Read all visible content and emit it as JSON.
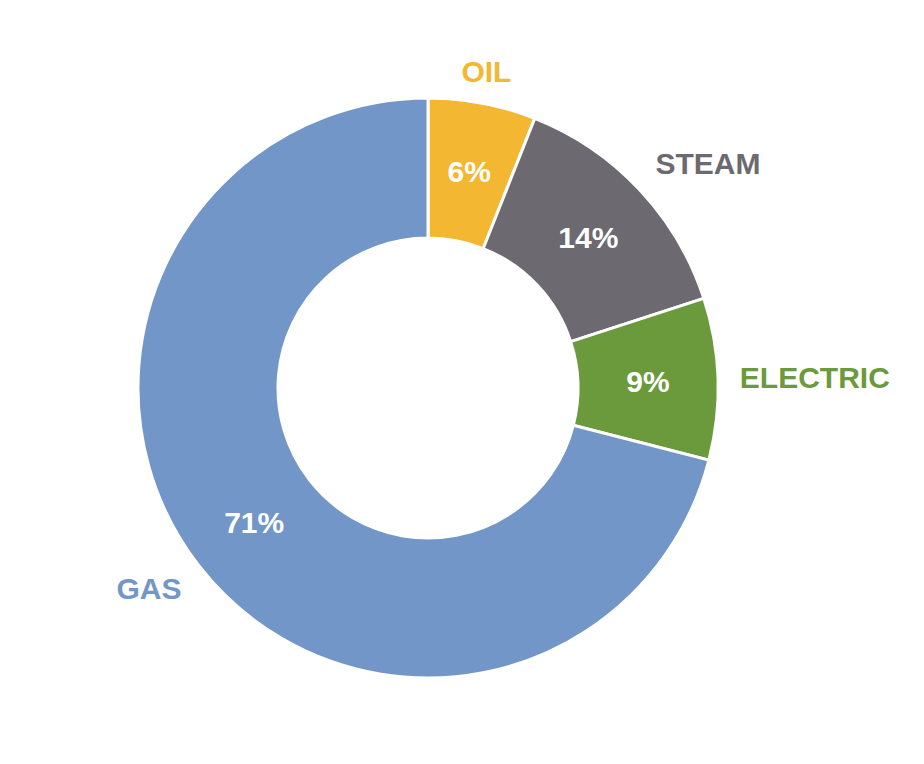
{
  "chart_data": {
    "type": "donut",
    "categories": [
      "OIL",
      "STEAM",
      "ELECTRIC",
      "GAS"
    ],
    "values": [
      6,
      14,
      9,
      71
    ],
    "value_labels": [
      "6%",
      "14%",
      "9%",
      "71%"
    ],
    "colors": [
      "#f4b731",
      "#6c6970",
      "#6b9a3c",
      "#7196c7"
    ],
    "data_labels": true
  }
}
